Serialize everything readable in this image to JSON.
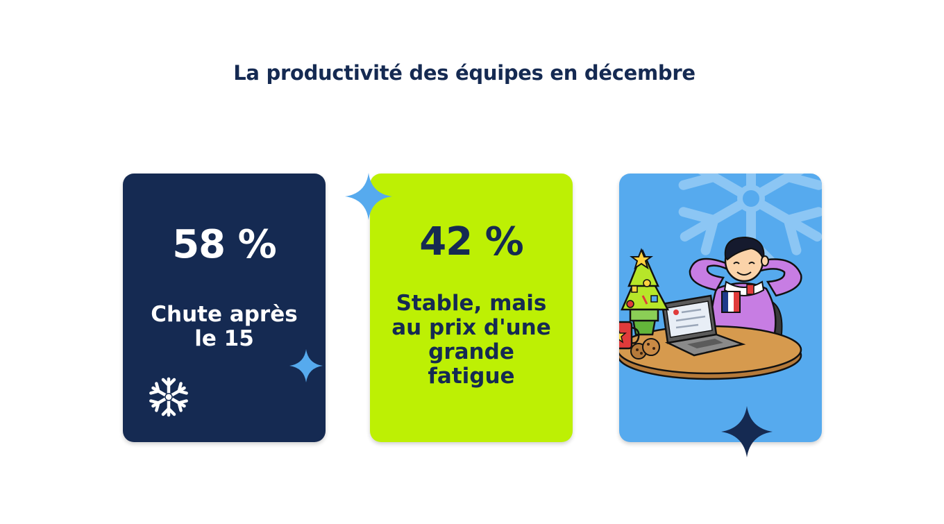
{
  "page": {
    "title": "La productivité des équipes en décembre"
  },
  "cards": [
    {
      "value": "58 %",
      "desc": [
        "Chute après",
        "le 15"
      ],
      "color": "#152a52"
    },
    {
      "value": "42 %",
      "desc": [
        "Stable, mais",
        "au prix d'une",
        "grande",
        "fatigue"
      ],
      "color": "#bdf004"
    },
    {
      "illustration": "person-relaxing-at-laptop-with-christmas-tree",
      "color": "#56aaee"
    }
  ],
  "icons": [
    "sparkle-icon",
    "snowflake-icon"
  ]
}
